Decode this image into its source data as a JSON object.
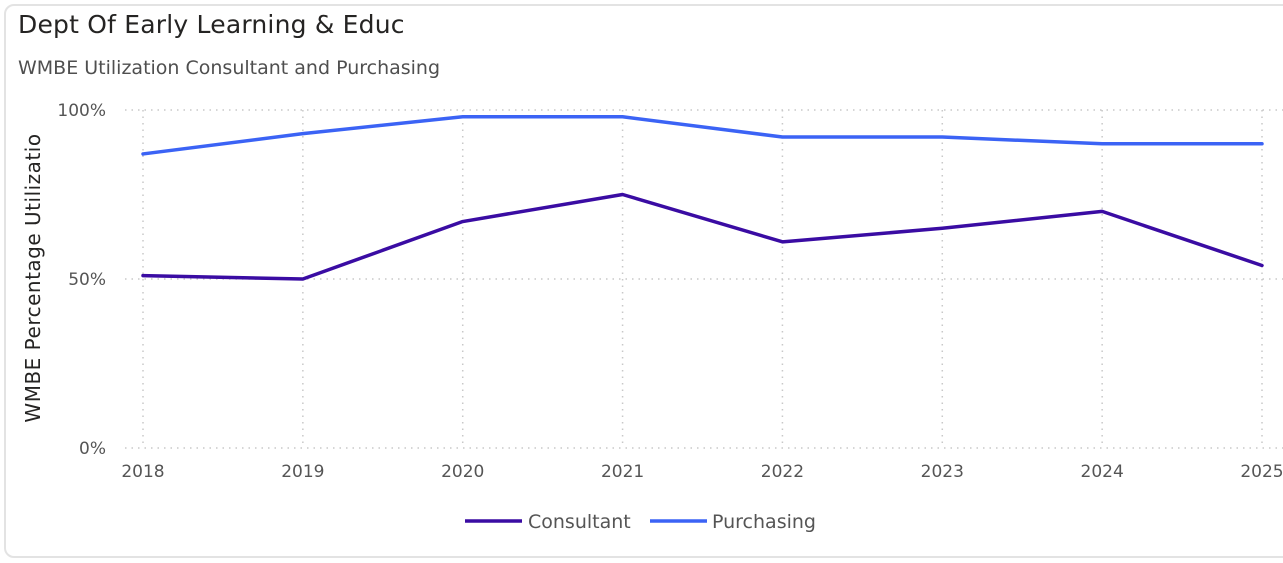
{
  "header": {
    "title": "Dept Of Early Learning & Educ",
    "subtitle": "WMBE Utilization Consultant and Purchasing"
  },
  "chart_data": {
    "type": "line",
    "title": "Dept Of Early Learning & Educ",
    "subtitle": "WMBE Utilization Consultant and Purchasing",
    "xlabel": "",
    "ylabel": "WMBE Percentage Utilizatio",
    "x": [
      "2018",
      "2019",
      "2020",
      "2021",
      "2022",
      "2023",
      "2024",
      "2025"
    ],
    "y_ticks": [
      "0%",
      "50%",
      "100%"
    ],
    "ylim": [
      0,
      100
    ],
    "grid": true,
    "legend_position": "bottom",
    "series": [
      {
        "name": "Consultant",
        "color": "#3a0ca3",
        "values": [
          51,
          50,
          67,
          75,
          61,
          65,
          70,
          54
        ]
      },
      {
        "name": "Purchasing",
        "color": "#3b63f5",
        "values": [
          87,
          93,
          98,
          98,
          92,
          92,
          90,
          90
        ]
      }
    ]
  }
}
